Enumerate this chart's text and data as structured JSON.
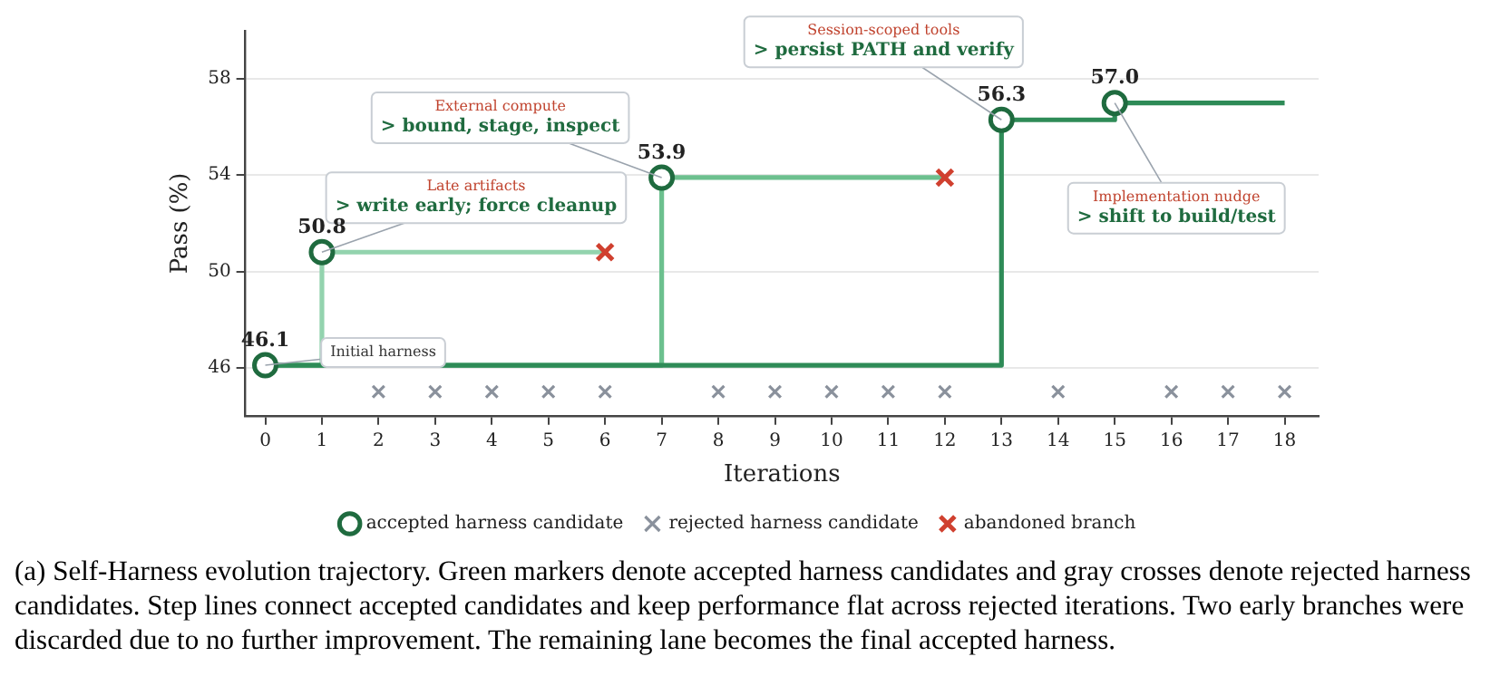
{
  "chart_data": {
    "type": "step",
    "xlabel": "Iterations",
    "ylabel": "Pass (%)",
    "xlim": [
      -0.35,
      18.6
    ],
    "xticks": [
      0,
      1,
      2,
      3,
      4,
      5,
      6,
      7,
      8,
      9,
      10,
      11,
      12,
      13,
      14,
      15,
      16,
      17,
      18
    ],
    "ylim": [
      44,
      60
    ],
    "yticks": [
      46,
      50,
      54,
      58
    ],
    "grid": "y",
    "legend": "bottom",
    "series": [
      {
        "color": "#93d3ae",
        "x": [
          0,
          1,
          6
        ],
        "values": [
          46.1,
          50.8,
          50.8
        ]
      },
      {
        "color": "#6cc08e",
        "x": [
          0,
          7,
          12
        ],
        "values": [
          46.1,
          53.9,
          53.9
        ]
      },
      {
        "color": "#2e8b57",
        "x": [
          0,
          13,
          15,
          18
        ],
        "values": [
          46.1,
          56.3,
          57.0,
          57.0
        ]
      },
      {
        "type": "scatter",
        "name": "accepted harness candidate",
        "color": "#1f6b3f",
        "marker": "circle",
        "x": [
          0,
          1,
          7,
          13,
          15
        ],
        "values": [
          46.1,
          50.8,
          53.9,
          56.3,
          57.0
        ],
        "value_labels": [
          "46.1",
          "50.8",
          "53.9",
          "56.3",
          "57.0"
        ]
      },
      {
        "type": "scatter",
        "name": "rejected harness candidate",
        "color": "#8a919c",
        "marker": "cross",
        "x": [
          2,
          3,
          4,
          5,
          6,
          8,
          9,
          10,
          11,
          12,
          14,
          16,
          17,
          18
        ],
        "values": [
          45,
          45,
          45,
          45,
          45,
          45,
          45,
          45,
          45,
          45,
          45,
          45,
          45,
          45
        ]
      },
      {
        "type": "scatter",
        "name": "abandoned branch",
        "color": "#d0402f",
        "marker": "cross",
        "x": [
          6,
          12
        ],
        "values": [
          50.8,
          53.9
        ]
      }
    ],
    "annotations": [
      {
        "text": "Initial harness",
        "x": 0,
        "y": 46.1
      },
      {
        "text": "Late artifacts\n> write early; force cleanup",
        "x": 1,
        "y": 50.8
      },
      {
        "text": "External compute\n> bound, stage, inspect",
        "x": 7,
        "y": 53.9
      },
      {
        "text": "Session-scoped tools\n> persist PATH and verify",
        "x": 13,
        "y": 56.3
      },
      {
        "text": "Implementation nudge\n> shift to build/test",
        "x": 15,
        "y": 57.0
      },
      "(a) Self-Harness evolution trajectory. Green markers denote accepted harness candidates and gray crosses denote rejected harness candidates. Step lines connect accepted candidates and keep performance flat across rejected iterations. Two early branches were discarded due to no further improvement. The remaining lane becomes the final accepted harness."
    ]
  }
}
